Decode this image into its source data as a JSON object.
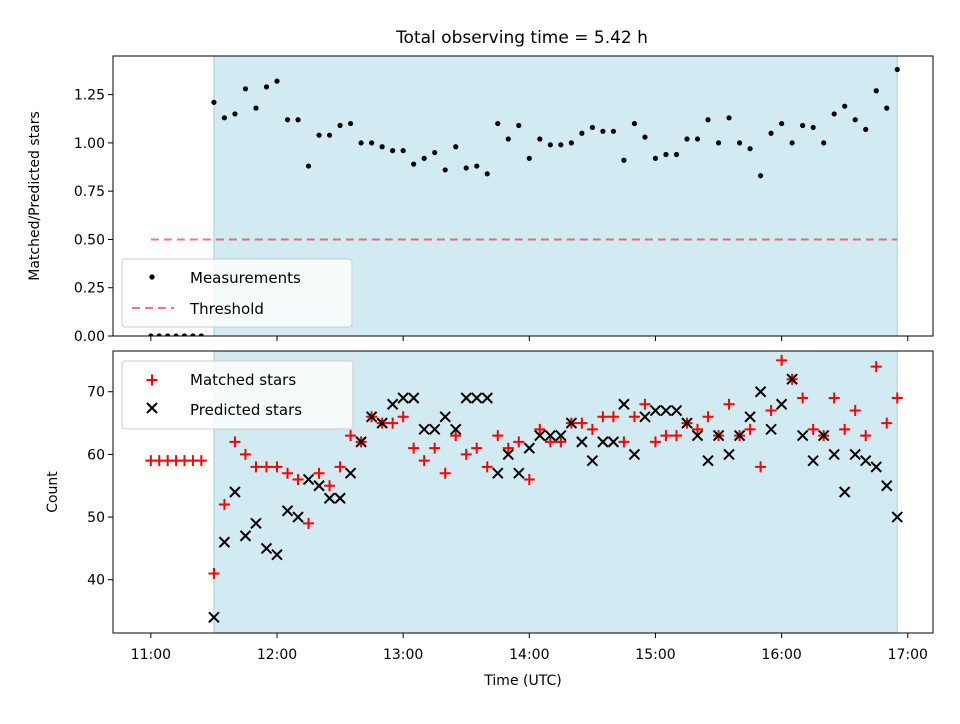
{
  "title": "Total observing time = 5.42 h",
  "colors": {
    "shade": "#add8e6",
    "threshold": "#ff0000",
    "measurement": "#000000",
    "matched": "#ff0000",
    "predicted": "#000000"
  },
  "chart_data": [
    {
      "type": "scatter",
      "title": "Total observing time = 5.42 h",
      "ylabel": "Matched/Predicted stars",
      "xlim": [
        "10:42",
        "17:12"
      ],
      "ylim": [
        0,
        1.45
      ],
      "yticks": [
        "0.00",
        "0.25",
        "0.50",
        "0.75",
        "1.00",
        "1.25"
      ],
      "ytick_values": [
        0,
        0.25,
        0.5,
        0.75,
        1.0,
        1.25
      ],
      "shaded_span": [
        "11:30",
        "16:55"
      ],
      "legend_position": "lower-left",
      "legend": [
        "Measurements",
        "Threshold"
      ],
      "threshold": {
        "name": "Threshold",
        "value": 0.5,
        "x_range": [
          "11:00",
          "16:55"
        ]
      },
      "series": [
        {
          "name": "Measurements",
          "x": [
            "11:00",
            "11:04",
            "11:08",
            "11:12",
            "11:16",
            "11:20",
            "11:24",
            "11:30",
            "11:35",
            "11:40",
            "11:45",
            "11:50",
            "11:55",
            "12:00",
            "12:05",
            "12:10",
            "12:15",
            "12:20",
            "12:25",
            "12:30",
            "12:35",
            "12:40",
            "12:45",
            "12:50",
            "12:55",
            "13:00",
            "13:05",
            "13:10",
            "13:15",
            "13:20",
            "13:25",
            "13:30",
            "13:35",
            "13:40",
            "13:45",
            "13:50",
            "13:55",
            "14:00",
            "14:05",
            "14:10",
            "14:15",
            "14:20",
            "14:25",
            "14:30",
            "14:35",
            "14:40",
            "14:45",
            "14:50",
            "14:55",
            "15:00",
            "15:05",
            "15:10",
            "15:15",
            "15:20",
            "15:25",
            "15:30",
            "15:35",
            "15:40",
            "15:45",
            "15:50",
            "15:55",
            "16:00",
            "16:05",
            "16:10",
            "16:15",
            "16:20",
            "16:25",
            "16:30",
            "16:35",
            "16:40",
            "16:45",
            "16:50",
            "16:55"
          ],
          "y": [
            0,
            0,
            0,
            0,
            0,
            0,
            0,
            1.21,
            1.13,
            1.15,
            1.28,
            1.18,
            1.29,
            1.32,
            1.12,
            1.12,
            0.88,
            1.04,
            1.04,
            1.09,
            1.1,
            1.0,
            1.0,
            0.98,
            0.96,
            0.96,
            0.89,
            0.92,
            0.95,
            0.86,
            0.98,
            0.87,
            0.88,
            0.84,
            1.1,
            1.02,
            1.09,
            0.92,
            1.02,
            0.99,
            0.99,
            1.0,
            1.05,
            1.08,
            1.06,
            1.06,
            0.91,
            1.1,
            1.03,
            0.92,
            0.94,
            0.94,
            1.02,
            1.02,
            1.12,
            1.0,
            1.13,
            1.0,
            0.97,
            0.83,
            1.05,
            1.1,
            1.0,
            1.09,
            1.08,
            1.0,
            1.15,
            1.19,
            1.12,
            1.07,
            1.27,
            1.18,
            1.38
          ]
        }
      ]
    },
    {
      "type": "scatter",
      "xlabel": "Time (UTC)",
      "ylabel": "Count",
      "xlim": [
        "10:42",
        "17:12"
      ],
      "ylim": [
        31.5,
        76.5
      ],
      "xticks": [
        "11:00",
        "12:00",
        "13:00",
        "14:00",
        "15:00",
        "16:00",
        "17:00"
      ],
      "yticks": [
        "40",
        "50",
        "60",
        "70"
      ],
      "ytick_values": [
        40,
        50,
        60,
        70
      ],
      "shaded_span": [
        "11:30",
        "16:55"
      ],
      "legend_position": "upper-left",
      "legend": [
        "Matched stars",
        "Predicted stars"
      ],
      "series": [
        {
          "name": "Matched stars",
          "marker": "+",
          "x": [
            "11:00",
            "11:04",
            "11:08",
            "11:12",
            "11:16",
            "11:20",
            "11:24",
            "11:30",
            "11:35",
            "11:40",
            "11:45",
            "11:50",
            "11:55",
            "12:00",
            "12:05",
            "12:10",
            "12:15",
            "12:20",
            "12:25",
            "12:30",
            "12:35",
            "12:40",
            "12:45",
            "12:50",
            "12:55",
            "13:00",
            "13:05",
            "13:10",
            "13:15",
            "13:20",
            "13:25",
            "13:30",
            "13:35",
            "13:40",
            "13:45",
            "13:50",
            "13:55",
            "14:00",
            "14:05",
            "14:10",
            "14:15",
            "14:20",
            "14:25",
            "14:30",
            "14:35",
            "14:40",
            "14:45",
            "14:50",
            "14:55",
            "15:00",
            "15:05",
            "15:10",
            "15:15",
            "15:20",
            "15:25",
            "15:30",
            "15:35",
            "15:40",
            "15:45",
            "15:50",
            "15:55",
            "16:00",
            "16:05",
            "16:10",
            "16:15",
            "16:20",
            "16:25",
            "16:30",
            "16:35",
            "16:40",
            "16:45",
            "16:50",
            "16:55"
          ],
          "y": [
            59,
            59,
            59,
            59,
            59,
            59,
            59,
            41,
            52,
            62,
            60,
            58,
            58,
            58,
            57,
            56,
            49,
            57,
            55,
            58,
            63,
            62,
            66,
            65,
            65,
            66,
            61,
            59,
            61,
            57,
            63,
            60,
            61,
            58,
            63,
            61,
            62,
            56,
            64,
            62,
            62,
            65,
            65,
            64,
            66,
            66,
            62,
            66,
            68,
            62,
            63,
            63,
            65,
            64,
            66,
            63,
            68,
            63,
            64,
            58,
            67,
            75,
            72,
            69,
            64,
            63,
            69,
            64,
            67,
            63,
            74,
            65,
            69
          ]
        },
        {
          "name": "Predicted stars",
          "marker": "x",
          "x": [
            "11:30",
            "11:35",
            "11:40",
            "11:45",
            "11:50",
            "11:55",
            "12:00",
            "12:05",
            "12:10",
            "12:15",
            "12:20",
            "12:25",
            "12:30",
            "12:35",
            "12:40",
            "12:45",
            "12:50",
            "12:55",
            "13:00",
            "13:05",
            "13:10",
            "13:15",
            "13:20",
            "13:25",
            "13:30",
            "13:35",
            "13:40",
            "13:45",
            "13:50",
            "13:55",
            "14:00",
            "14:05",
            "14:10",
            "14:15",
            "14:20",
            "14:25",
            "14:30",
            "14:35",
            "14:40",
            "14:45",
            "14:50",
            "14:55",
            "15:00",
            "15:05",
            "15:10",
            "15:15",
            "15:20",
            "15:25",
            "15:30",
            "15:35",
            "15:40",
            "15:45",
            "15:50",
            "15:55",
            "16:00",
            "16:05",
            "16:10",
            "16:15",
            "16:20",
            "16:25",
            "16:30",
            "16:35",
            "16:40",
            "16:45",
            "16:50",
            "16:55"
          ],
          "y": [
            34,
            46,
            54,
            47,
            49,
            45,
            44,
            51,
            50,
            56,
            55,
            53,
            53,
            57,
            62,
            66,
            65,
            68,
            69,
            69,
            64,
            64,
            66,
            64,
            69,
            69,
            69,
            57,
            60,
            57,
            61,
            63,
            63,
            63,
            65,
            62,
            59,
            62,
            62,
            68,
            60,
            66,
            67,
            67,
            67,
            65,
            63,
            59,
            63,
            60,
            63,
            66,
            70,
            64,
            68,
            72,
            63,
            59,
            63,
            60,
            54,
            60,
            59,
            58,
            55,
            50
          ]
        }
      ]
    }
  ]
}
